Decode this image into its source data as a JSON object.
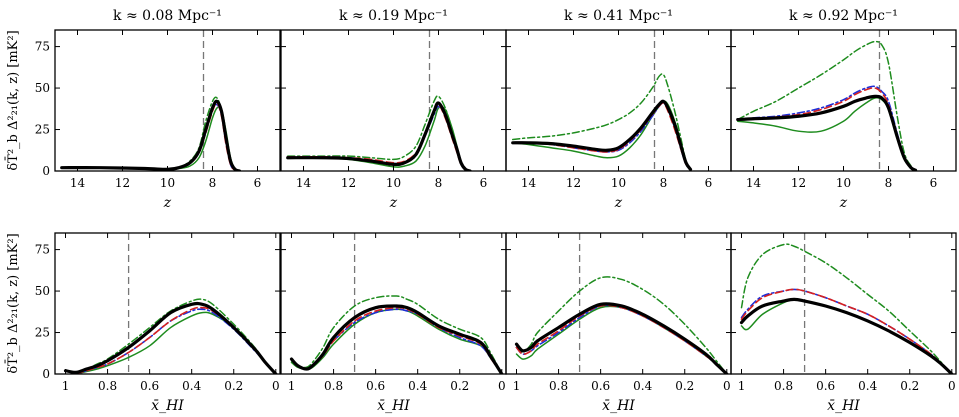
{
  "figure": {
    "ylabel": "δT̄²_b Δ²₂₁(k, z) [mK²]",
    "top_xlabel": "z",
    "bottom_xlabel": "x̄_HI"
  },
  "colors": {
    "black": "#000000",
    "red": "#d62020",
    "blue": "#1f2fd8",
    "green": "#1e8c1e",
    "dash": "#777777"
  },
  "chart_data": [
    {
      "type": "line",
      "title": "k ≈ 0.08 Mpc⁻¹",
      "xlabel": "z",
      "xlim": [
        15,
        5
      ],
      "ylim": [
        0,
        85
      ],
      "xticks": [
        14,
        12,
        10,
        8,
        6
      ],
      "yticks": [
        0,
        25,
        50,
        75
      ],
      "vline": 8.4,
      "x": [
        14.7,
        13,
        11,
        10,
        9.5,
        9,
        8.6,
        8.3,
        8,
        7.8,
        7.6,
        7.4,
        7.2,
        7,
        6.8
      ],
      "series": [
        {
          "name": "black",
          "values": [
            2,
            2,
            1.5,
            1,
            2,
            5,
            12,
            25,
            38,
            42,
            36,
            20,
            6,
            1,
            0
          ]
        },
        {
          "name": "red",
          "values": [
            2,
            2,
            1.5,
            1,
            2,
            4.5,
            11,
            23,
            36,
            41,
            33,
            16,
            4,
            0.5,
            0
          ]
        },
        {
          "name": "blue",
          "values": [
            2,
            2,
            1.5,
            1,
            2,
            4.5,
            11,
            23,
            37,
            40,
            34,
            17,
            4,
            0.5,
            0
          ]
        },
        {
          "name": "green-dashdot",
          "values": [
            2,
            2,
            1.5,
            1,
            2,
            6,
            14,
            30,
            42,
            44,
            36,
            18,
            5,
            1,
            0
          ]
        },
        {
          "name": "green-solid",
          "values": [
            2,
            2,
            1.5,
            1,
            1.5,
            3,
            8,
            18,
            32,
            38,
            37,
            24,
            8,
            1,
            0
          ]
        }
      ]
    },
    {
      "type": "line",
      "title": "k ≈ 0.19 Mpc⁻¹",
      "xlabel": "z",
      "xlim": [
        15,
        5
      ],
      "ylim": [
        0,
        85
      ],
      "xticks": [
        14,
        12,
        10,
        8,
        6
      ],
      "yticks": [
        0,
        25,
        50,
        75
      ],
      "vline": 8.4,
      "x": [
        14.7,
        13,
        12,
        11,
        10,
        9.5,
        9,
        8.6,
        8.2,
        8,
        7.7,
        7.4,
        7.2,
        7,
        6.8,
        6.6
      ],
      "series": [
        {
          "name": "black",
          "values": [
            8,
            8,
            7.5,
            6,
            4,
            5,
            10,
            22,
            36,
            41,
            34,
            22,
            14,
            5,
            1,
            0
          ]
        },
        {
          "name": "red",
          "values": [
            8.5,
            8.5,
            8,
            7,
            5,
            6,
            11,
            22,
            35,
            40,
            32,
            20,
            12,
            4,
            1,
            0
          ]
        },
        {
          "name": "blue",
          "values": [
            8.5,
            8.5,
            8,
            6.5,
            4.5,
            5.5,
            10,
            21,
            34,
            39,
            33,
            21,
            13,
            4,
            1,
            0
          ]
        },
        {
          "name": "green-dashdot",
          "values": [
            9,
            9,
            9,
            8,
            7,
            9,
            15,
            28,
            42,
            45,
            38,
            25,
            14,
            5,
            1,
            0
          ]
        },
        {
          "name": "green-solid",
          "values": [
            8,
            8,
            7,
            5,
            2.5,
            3,
            6,
            15,
            30,
            38,
            37,
            26,
            16,
            6,
            1,
            0
          ]
        }
      ]
    },
    {
      "type": "line",
      "title": "k ≈ 0.41 Mpc⁻¹",
      "xlabel": "z",
      "xlim": [
        15,
        5
      ],
      "ylim": [
        0,
        85
      ],
      "xticks": [
        14,
        12,
        10,
        8,
        6
      ],
      "yticks": [
        0,
        25,
        50,
        75
      ],
      "vline": 8.4,
      "x": [
        14.7,
        14,
        13,
        12,
        11,
        10.5,
        10,
        9.5,
        9,
        8.5,
        8.2,
        8,
        7.8,
        7.5,
        7.2,
        7,
        6.8
      ],
      "series": [
        {
          "name": "black",
          "values": [
            17,
            17,
            16.5,
            15,
            13,
            12.5,
            14,
            19,
            26,
            35,
            40,
            42,
            38,
            28,
            14,
            5,
            1
          ]
        },
        {
          "name": "red",
          "values": [
            17,
            17,
            16,
            14,
            12,
            11.5,
            13,
            18,
            25,
            34,
            39,
            41,
            36,
            25,
            12,
            4,
            1
          ]
        },
        {
          "name": "blue",
          "values": [
            17,
            17,
            16,
            14,
            12,
            11.5,
            12.5,
            17,
            24,
            33,
            39,
            41,
            37,
            26,
            12,
            4,
            1
          ]
        },
        {
          "name": "green-dashdot",
          "values": [
            19,
            20,
            21,
            23,
            26,
            28,
            31,
            35,
            41,
            50,
            57,
            58,
            51,
            36,
            18,
            6,
            1
          ]
        },
        {
          "name": "green-solid",
          "values": [
            17,
            16,
            14,
            12,
            9,
            8,
            9,
            14,
            22,
            33,
            39,
            42,
            40,
            30,
            16,
            6,
            1
          ]
        }
      ]
    },
    {
      "type": "line",
      "title": "k ≈ 0.92 Mpc⁻¹",
      "xlabel": "z",
      "xlim": [
        15,
        5
      ],
      "ylim": [
        0,
        85
      ],
      "xticks": [
        14,
        12,
        10,
        8,
        6
      ],
      "yticks": [
        0,
        25,
        50,
        75
      ],
      "vline": 8.4,
      "x": [
        14.7,
        14,
        13,
        12,
        11,
        10,
        9.5,
        9,
        8.6,
        8.3,
        8,
        7.6,
        7.3,
        7,
        6.8
      ],
      "series": [
        {
          "name": "black",
          "values": [
            31,
            31.5,
            32,
            33,
            35,
            39,
            42,
            44,
            45,
            44,
            38,
            20,
            8,
            2,
            0.5
          ]
        },
        {
          "name": "red",
          "values": [
            31,
            31.5,
            32.5,
            34,
            37,
            42,
            46,
            49,
            50,
            47,
            40,
            21,
            8,
            2,
            0.5
          ]
        },
        {
          "name": "blue",
          "values": [
            31,
            32,
            33,
            35,
            38,
            43,
            47,
            50,
            51,
            48,
            42,
            22,
            9,
            2,
            0.5
          ]
        },
        {
          "name": "green-dashdot",
          "values": [
            31,
            36,
            42,
            50,
            58,
            67,
            72,
            76,
            78,
            76,
            65,
            32,
            11,
            3,
            0.5
          ]
        },
        {
          "name": "green-solid",
          "values": [
            30,
            29,
            27,
            24,
            24,
            30,
            36,
            41,
            44,
            43,
            37,
            19,
            7,
            2,
            0.5
          ]
        }
      ]
    },
    {
      "type": "line",
      "title": "",
      "xlabel": "x̄_HI",
      "xlim": [
        1.05,
        -0.02
      ],
      "ylim": [
        0,
        85
      ],
      "xticks": [
        1,
        0.8,
        0.6,
        0.4,
        0.2,
        0
      ],
      "xticklabels": [
        "1",
        "0.8",
        "0.6",
        "0.4",
        "0.2",
        "0"
      ],
      "yticks": [
        0,
        25,
        50,
        75
      ],
      "vline": 0.7,
      "x": [
        1,
        0.95,
        0.9,
        0.85,
        0.8,
        0.7,
        0.6,
        0.5,
        0.4,
        0.35,
        0.3,
        0.2,
        0.1,
        0.05,
        0
      ],
      "series": [
        {
          "name": "black",
          "values": [
            2,
            1,
            3,
            5,
            8,
            16,
            26,
            37,
            42,
            42,
            39,
            28,
            15,
            7,
            0
          ]
        },
        {
          "name": "red",
          "values": [
            2,
            0.5,
            2,
            4,
            6,
            13,
            22,
            32,
            39,
            40,
            38,
            28,
            15,
            7,
            0
          ]
        },
        {
          "name": "blue",
          "values": [
            2,
            0.5,
            2,
            4,
            6,
            13,
            22,
            32,
            38,
            39,
            37,
            27,
            14,
            7,
            0
          ]
        },
        {
          "name": "green-dashdot",
          "values": [
            2,
            1,
            3,
            6,
            9,
            18,
            28,
            38,
            44,
            45,
            42,
            30,
            16,
            7,
            0
          ]
        },
        {
          "name": "green-solid",
          "values": [
            2,
            0.5,
            1.5,
            3,
            5,
            10,
            17,
            28,
            35,
            37,
            36,
            28,
            15,
            7,
            0
          ]
        }
      ]
    },
    {
      "type": "line",
      "title": "",
      "xlabel": "x̄_HI",
      "xlim": [
        1.05,
        -0.02
      ],
      "ylim": [
        0,
        85
      ],
      "xticks": [
        1,
        0.8,
        0.6,
        0.4,
        0.2,
        0
      ],
      "xticklabels": [
        "1",
        "0.8",
        "0.6",
        "0.4",
        "0.2",
        "0"
      ],
      "yticks": [
        0,
        25,
        50,
        75
      ],
      "vline": 0.7,
      "x": [
        1,
        0.97,
        0.93,
        0.9,
        0.85,
        0.8,
        0.7,
        0.6,
        0.5,
        0.45,
        0.4,
        0.3,
        0.2,
        0.1,
        0.05,
        0
      ],
      "series": [
        {
          "name": "black",
          "values": [
            9,
            5,
            3,
            5,
            12,
            22,
            34,
            40,
            41,
            40,
            37,
            29,
            24,
            19,
            10,
            0
          ]
        },
        {
          "name": "red",
          "values": [
            9,
            5,
            3,
            5,
            11,
            20,
            32,
            38,
            40,
            39,
            36,
            28,
            23,
            18,
            9,
            0
          ]
        },
        {
          "name": "blue",
          "values": [
            9,
            5,
            3,
            5,
            11,
            20,
            31,
            37,
            39,
            38,
            36,
            28,
            22,
            17,
            9,
            0
          ]
        },
        {
          "name": "green-dashdot",
          "values": [
            8,
            5,
            4,
            7,
            16,
            28,
            41,
            46,
            47,
            45,
            42,
            33,
            27,
            22,
            12,
            0
          ]
        },
        {
          "name": "green-solid",
          "values": [
            7,
            4,
            3,
            4,
            10,
            18,
            30,
            37,
            39,
            38,
            35,
            27,
            21,
            17,
            9,
            0
          ]
        }
      ]
    },
    {
      "type": "line",
      "title": "",
      "xlabel": "x̄_HI",
      "xlim": [
        1.05,
        -0.02
      ],
      "ylim": [
        0,
        85
      ],
      "xticks": [
        1,
        0.8,
        0.6,
        0.4,
        0.2,
        0
      ],
      "xticklabels": [
        "1",
        "0.8",
        "0.6",
        "0.4",
        "0.2",
        "0"
      ],
      "yticks": [
        0,
        25,
        50,
        75
      ],
      "vline": 0.7,
      "x": [
        1,
        0.97,
        0.93,
        0.9,
        0.8,
        0.7,
        0.6,
        0.5,
        0.4,
        0.3,
        0.2,
        0.1,
        0.05,
        0
      ],
      "series": [
        {
          "name": "black",
          "values": [
            18,
            14,
            16,
            20,
            28,
            36,
            42,
            41,
            36,
            29,
            21,
            12,
            6,
            0
          ]
        },
        {
          "name": "red",
          "values": [
            16,
            12,
            14,
            18,
            26,
            35,
            41,
            40,
            35,
            28,
            20,
            11,
            6,
            0
          ]
        },
        {
          "name": "blue",
          "values": [
            16,
            12,
            14,
            17,
            25,
            34,
            41,
            40,
            35,
            28,
            20,
            11,
            6,
            0
          ]
        },
        {
          "name": "green-dashdot",
          "values": [
            16,
            13,
            18,
            25,
            38,
            50,
            58,
            57,
            51,
            42,
            30,
            16,
            8,
            0
          ]
        },
        {
          "name": "green-solid",
          "values": [
            12,
            9,
            11,
            15,
            24,
            33,
            40,
            40,
            35,
            28,
            20,
            11,
            6,
            0
          ]
        }
      ]
    },
    {
      "type": "line",
      "title": "",
      "xlabel": "x̄_HI",
      "xlim": [
        1.05,
        -0.02
      ],
      "ylim": [
        0,
        85
      ],
      "xticks": [
        1,
        0.8,
        0.6,
        0.4,
        0.2,
        0
      ],
      "xticklabels": [
        "1",
        "0.8",
        "0.6",
        "0.4",
        "0.2",
        "0"
      ],
      "yticks": [
        0,
        25,
        50,
        75
      ],
      "vline": 0.7,
      "x": [
        1,
        0.97,
        0.9,
        0.8,
        0.75,
        0.7,
        0.6,
        0.5,
        0.4,
        0.3,
        0.2,
        0.1,
        0.05,
        0
      ],
      "series": [
        {
          "name": "black",
          "values": [
            31,
            35,
            41,
            44,
            45,
            44,
            41,
            37,
            32,
            26,
            19,
            11,
            6,
            0
          ]
        },
        {
          "name": "red",
          "values": [
            33,
            38,
            46,
            50,
            51,
            50,
            46,
            41,
            36,
            29,
            21,
            12,
            6,
            0
          ]
        },
        {
          "name": "blue",
          "values": [
            34,
            39,
            47,
            50,
            51,
            50,
            46,
            41,
            36,
            29,
            21,
            12,
            6,
            0
          ]
        },
        {
          "name": "green-dashdot",
          "values": [
            40,
            58,
            72,
            78,
            77,
            74,
            67,
            58,
            48,
            38,
            26,
            14,
            7,
            0
          ]
        },
        {
          "name": "green-solid",
          "values": [
            29,
            27,
            36,
            43,
            45,
            44,
            41,
            37,
            32,
            26,
            19,
            11,
            6,
            0
          ]
        }
      ]
    }
  ]
}
